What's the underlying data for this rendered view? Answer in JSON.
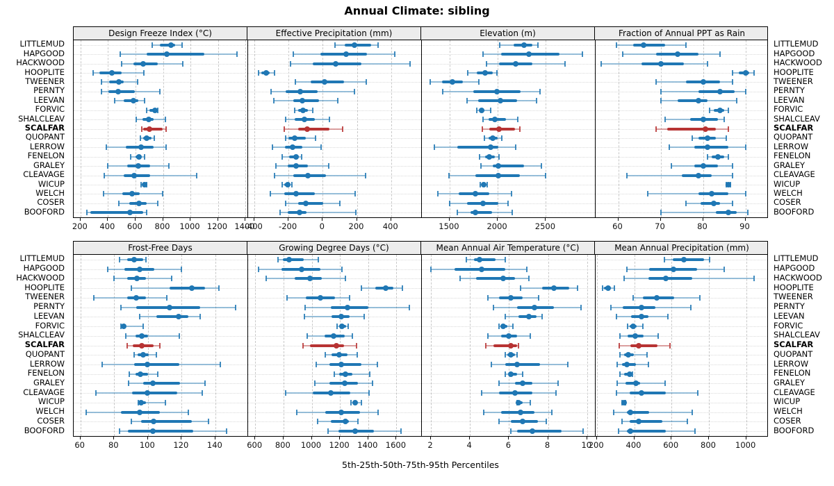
{
  "title": "Annual Climate: sibling",
  "caption": "5th-25th-50th-75th-95th Percentiles",
  "percentile_labels": [
    "5th",
    "25th",
    "50th",
    "75th",
    "95th"
  ],
  "highlight_site": "SCALFAR",
  "colors": {
    "series": "#1F77B4",
    "highlight": "#B73333",
    "header_bg": "#ECECEC",
    "grid": "#C8C8C8",
    "border": "#000000"
  },
  "sites": [
    "LITTLEMUD",
    "HAPGOOD",
    "HACKWOOD",
    "HOOPLITE",
    "TWEENER",
    "PERNTY",
    "LEEVAN",
    "FORVIC",
    "SHALCLEAV",
    "SCALFAR",
    "QUOPANT",
    "LERROW",
    "FENELON",
    "GRALEY",
    "CLEAVAGE",
    "WICUP",
    "WELCH",
    "COSER",
    "BOOFORD"
  ],
  "chart_data": [
    {
      "type": "dot-whisker",
      "title": "Design Freeze Index (°C)",
      "xlim": [
        150,
        1415
      ],
      "ticks": [
        200,
        400,
        600,
        800,
        1000,
        1200,
        1400
      ],
      "values": [
        [
          720,
          775,
          860,
          890,
          940
        ],
        [
          490,
          680,
          830,
          1100,
          1340
        ],
        [
          500,
          585,
          655,
          760,
          945
        ],
        [
          290,
          335,
          430,
          500,
          660
        ],
        [
          350,
          410,
          480,
          515,
          615
        ],
        [
          350,
          405,
          475,
          595,
          775
        ],
        [
          450,
          515,
          585,
          620,
          665
        ],
        [
          680,
          700,
          740,
          750,
          760
        ],
        [
          605,
          650,
          695,
          730,
          820
        ],
        [
          645,
          655,
          700,
          800,
          825
        ],
        [
          635,
          655,
          680,
          715,
          735
        ],
        [
          390,
          530,
          640,
          730,
          825
        ],
        [
          565,
          600,
          625,
          645,
          665
        ],
        [
          400,
          540,
          620,
          705,
          845
        ],
        [
          370,
          515,
          590,
          705,
          1045
        ],
        [
          640,
          650,
          665,
          675,
          680
        ],
        [
          365,
          505,
          575,
          630,
          795
        ],
        [
          480,
          555,
          625,
          680,
          760
        ],
        [
          245,
          270,
          560,
          655,
          680
        ]
      ]
    },
    {
      "type": "dot-whisker",
      "title": "Effective Precipitation (mm)",
      "xlim": [
        -440,
        576
      ],
      "ticks": [
        -400,
        -200,
        0,
        200,
        400
      ],
      "values": [
        [
          70,
          130,
          185,
          285,
          325
        ],
        [
          -170,
          -15,
          135,
          260,
          420
        ],
        [
          -190,
          -60,
          75,
          225,
          510
        ],
        [
          -375,
          -360,
          -330,
          -310,
          -280
        ],
        [
          -160,
          -70,
          10,
          125,
          255
        ],
        [
          -300,
          -215,
          -130,
          -30,
          185
        ],
        [
          -285,
          -170,
          -120,
          -20,
          90
        ],
        [
          -165,
          -145,
          -115,
          -85,
          -60
        ],
        [
          -215,
          -165,
          -105,
          -45,
          40
        ],
        [
          -225,
          -145,
          -90,
          40,
          115
        ],
        [
          -215,
          -200,
          -165,
          -100,
          -40
        ],
        [
          -295,
          -220,
          -175,
          -120,
          -10
        ],
        [
          -235,
          -195,
          -155,
          -140,
          -125
        ],
        [
          -275,
          -205,
          -155,
          -85,
          35
        ],
        [
          -280,
          -170,
          -85,
          20,
          250
        ],
        [
          -235,
          -225,
          -205,
          -190,
          -180
        ],
        [
          -305,
          -225,
          -155,
          -45,
          190
        ],
        [
          -215,
          -145,
          -100,
          5,
          100
        ],
        [
          -250,
          -205,
          -135,
          -95,
          195
        ]
      ]
    },
    {
      "type": "dot-whisker",
      "title": "Elevation (m)",
      "xlim": [
        1205,
        3010
      ],
      "ticks": [
        1500,
        2000,
        2500
      ],
      "values": [
        [
          2020,
          2165,
          2270,
          2360,
          2415
        ],
        [
          1845,
          2035,
          2325,
          2640,
          2880
        ],
        [
          1880,
          2010,
          2190,
          2360,
          2700
        ],
        [
          1685,
          1785,
          1870,
          1950,
          1995
        ],
        [
          1300,
          1420,
          1530,
          1635,
          1805
        ],
        [
          1430,
          1745,
          1990,
          2240,
          2440
        ],
        [
          1680,
          1795,
          2025,
          2205,
          2400
        ],
        [
          1785,
          1805,
          1830,
          1860,
          1925
        ],
        [
          1845,
          1905,
          1970,
          2085,
          2210
        ],
        [
          1840,
          1915,
          2010,
          2180,
          2230
        ],
        [
          1860,
          1905,
          1950,
          2000,
          2040
        ],
        [
          1340,
          1580,
          1925,
          2010,
          2190
        ],
        [
          1810,
          1870,
          1915,
          1970,
          2010
        ],
        [
          1825,
          1950,
          2005,
          2275,
          2455
        ],
        [
          1490,
          1765,
          2005,
          2230,
          2500
        ],
        [
          1820,
          1835,
          1855,
          1875,
          1890
        ],
        [
          1375,
          1595,
          1765,
          1915,
          2140
        ],
        [
          1500,
          1680,
          1850,
          2005,
          2105
        ],
        [
          1580,
          1720,
          1770,
          1940,
          2150
        ]
      ]
    },
    {
      "type": "dot-whisker",
      "title": "Fraction of Annual PPT as Rain",
      "xlim": [
        54.5,
        95.5
      ],
      "ticks": [
        60,
        70,
        80,
        90
      ],
      "values": [
        [
          59.5,
          63.5,
          66,
          71,
          76
        ],
        [
          61,
          69,
          74,
          79,
          84
        ],
        [
          56,
          65.5,
          70,
          75.5,
          81
        ],
        [
          87,
          88.5,
          90,
          91,
          92
        ],
        [
          69,
          76,
          80,
          84,
          87
        ],
        [
          70,
          79,
          84,
          87.5,
          90
        ],
        [
          70,
          74,
          79,
          81,
          88
        ],
        [
          81.5,
          82.5,
          84,
          85,
          86
        ],
        [
          71,
          77,
          80,
          83.5,
          85
        ],
        [
          69,
          71.5,
          80.5,
          83,
          86
        ],
        [
          77.5,
          79,
          81,
          83,
          85.5
        ],
        [
          72,
          78,
          81,
          86,
          90
        ],
        [
          81,
          82,
          83.5,
          85,
          86
        ],
        [
          72.5,
          78,
          80,
          83.5,
          87
        ],
        [
          62,
          75,
          79,
          82,
          87
        ],
        [
          85.5,
          85.8,
          86,
          86.3,
          86.5
        ],
        [
          67,
          79,
          82,
          86,
          90
        ],
        [
          76,
          79.5,
          82.5,
          84,
          87
        ],
        [
          70,
          83,
          86,
          88,
          90.5
        ]
      ]
    },
    {
      "type": "dot-whisker",
      "title": "Frost-Free Days",
      "xlim": [
        56,
        159
      ],
      "ticks": [
        60,
        80,
        100,
        120,
        140
      ],
      "values": [
        [
          83,
          87.5,
          92,
          97,
          99
        ],
        [
          76,
          86,
          95,
          104,
          120
        ],
        [
          80,
          87.5,
          93.5,
          99,
          114
        ],
        [
          90,
          113,
          126,
          134,
          142
        ],
        [
          68,
          87.5,
          93,
          99,
          111
        ],
        [
          84,
          93,
          113,
          131,
          152
        ],
        [
          95,
          105,
          118,
          124,
          131
        ],
        [
          84,
          84.5,
          85.5,
          87,
          97
        ],
        [
          87,
          92.5,
          96.5,
          100,
          118.5
        ],
        [
          87.5,
          91,
          96.5,
          103.5,
          107
        ],
        [
          92,
          94,
          97,
          100.5,
          105
        ],
        [
          73,
          92,
          99.5,
          118.5,
          143
        ],
        [
          89,
          92.5,
          95.5,
          100,
          106
        ],
        [
          88.5,
          97,
          103,
          119,
          134
        ],
        [
          69,
          90.5,
          99.5,
          117.5,
          132
        ],
        [
          94.5,
          95,
          96,
          99,
          110.5
        ],
        [
          63.5,
          84,
          95,
          107,
          124
        ],
        [
          90,
          96,
          103.5,
          126,
          136
        ],
        [
          83,
          88,
          103,
          127,
          146.5
        ]
      ]
    },
    {
      "type": "dot-whisker",
      "title": "Growing Degree Days (°C)",
      "xlim": [
        545,
        1775
      ],
      "ticks": [
        600,
        800,
        1000,
        1200,
        1400,
        1600
      ],
      "values": [
        [
          760,
          795,
          840,
          945,
          1045
        ],
        [
          625,
          785,
          930,
          1060,
          1215
        ],
        [
          680,
          880,
          990,
          1070,
          1240
        ],
        [
          1350,
          1450,
          1525,
          1580,
          1640
        ],
        [
          825,
          960,
          1060,
          1165,
          1270
        ],
        [
          955,
          1135,
          1255,
          1400,
          1690
        ],
        [
          950,
          1140,
          1210,
          1270,
          1370
        ],
        [
          1180,
          1195,
          1215,
          1245,
          1260
        ],
        [
          970,
          1090,
          1155,
          1235,
          1290
        ],
        [
          940,
          990,
          1175,
          1230,
          1315
        ],
        [
          1095,
          1140,
          1195,
          1255,
          1320
        ],
        [
          1030,
          1125,
          1210,
          1350,
          1465
        ],
        [
          1160,
          1195,
          1240,
          1290,
          1410
        ],
        [
          1020,
          1125,
          1235,
          1325,
          1430
        ],
        [
          815,
          1005,
          1135,
          1275,
          1405
        ],
        [
          1280,
          1295,
          1305,
          1320,
          1350
        ],
        [
          895,
          1095,
          1210,
          1340,
          1470
        ],
        [
          1040,
          1135,
          1240,
          1265,
          1325
        ],
        [
          1115,
          1190,
          1305,
          1440,
          1630
        ]
      ]
    },
    {
      "type": "dot-whisker",
      "title": "Mean Annual Air Temperature (°C)",
      "xlim": [
        1.5,
        10.4
      ],
      "ticks": [
        2,
        4,
        6,
        8,
        10
      ],
      "values": [
        [
          3.8,
          4.2,
          4.5,
          5.3,
          5.8
        ],
        [
          2.0,
          3.2,
          4.6,
          5.8,
          6.9
        ],
        [
          3.5,
          4.3,
          5.7,
          6.3,
          7.0
        ],
        [
          6.6,
          7.7,
          8.3,
          9.1,
          9.5
        ],
        [
          4.9,
          5.5,
          6.1,
          6.7,
          7.5
        ],
        [
          5.2,
          6.4,
          7.3,
          8.3,
          9.7
        ],
        [
          5.8,
          6.5,
          7.0,
          7.4,
          7.7
        ],
        [
          5.5,
          5.6,
          5.7,
          5.9,
          6.2
        ],
        [
          4.9,
          5.6,
          6.0,
          6.4,
          7.1
        ],
        [
          4.8,
          5.2,
          6.1,
          6.4,
          6.5
        ],
        [
          5.8,
          5.9,
          6.1,
          6.3,
          6.4
        ],
        [
          5.1,
          5.8,
          6.4,
          7.6,
          9.0
        ],
        [
          5.8,
          6.0,
          6.1,
          6.4,
          6.7
        ],
        [
          5.5,
          6.3,
          6.7,
          7.2,
          8.5
        ],
        [
          4.6,
          5.5,
          6.3,
          7.2,
          8.4
        ],
        [
          6.4,
          6.45,
          6.5,
          6.7,
          7.1
        ],
        [
          4.7,
          5.6,
          6.6,
          7.3,
          8.2
        ],
        [
          5.5,
          6.1,
          6.7,
          7.5,
          7.9
        ],
        [
          6.1,
          6.4,
          7.2,
          8.7,
          9.8
        ]
      ]
    },
    {
      "type": "dot-whisker",
      "title": "Mean Annual Precipitation (mm)",
      "xlim": [
        190,
        1120
      ],
      "ticks": [
        200,
        400,
        600,
        800,
        1000
      ],
      "values": [
        [
          560,
          605,
          665,
          775,
          805
        ],
        [
          360,
          480,
          610,
          735,
          880
        ],
        [
          345,
          475,
          570,
          710,
          1040
        ],
        [
          230,
          240,
          260,
          275,
          295
        ],
        [
          395,
          445,
          520,
          615,
          750
        ],
        [
          275,
          340,
          440,
          515,
          705
        ],
        [
          305,
          385,
          440,
          475,
          580
        ],
        [
          365,
          375,
          395,
          415,
          445
        ],
        [
          325,
          365,
          405,
          450,
          530
        ],
        [
          320,
          380,
          425,
          525,
          590
        ],
        [
          325,
          345,
          370,
          400,
          470
        ],
        [
          310,
          335,
          360,
          410,
          475
        ],
        [
          325,
          345,
          375,
          385,
          390
        ],
        [
          310,
          355,
          410,
          430,
          565
        ],
        [
          305,
          375,
          440,
          570,
          740
        ],
        [
          335,
          340,
          345,
          350,
          355
        ],
        [
          290,
          360,
          380,
          480,
          710
        ],
        [
          335,
          375,
          425,
          550,
          685
        ],
        [
          315,
          360,
          380,
          570,
          725
        ]
      ]
    }
  ]
}
